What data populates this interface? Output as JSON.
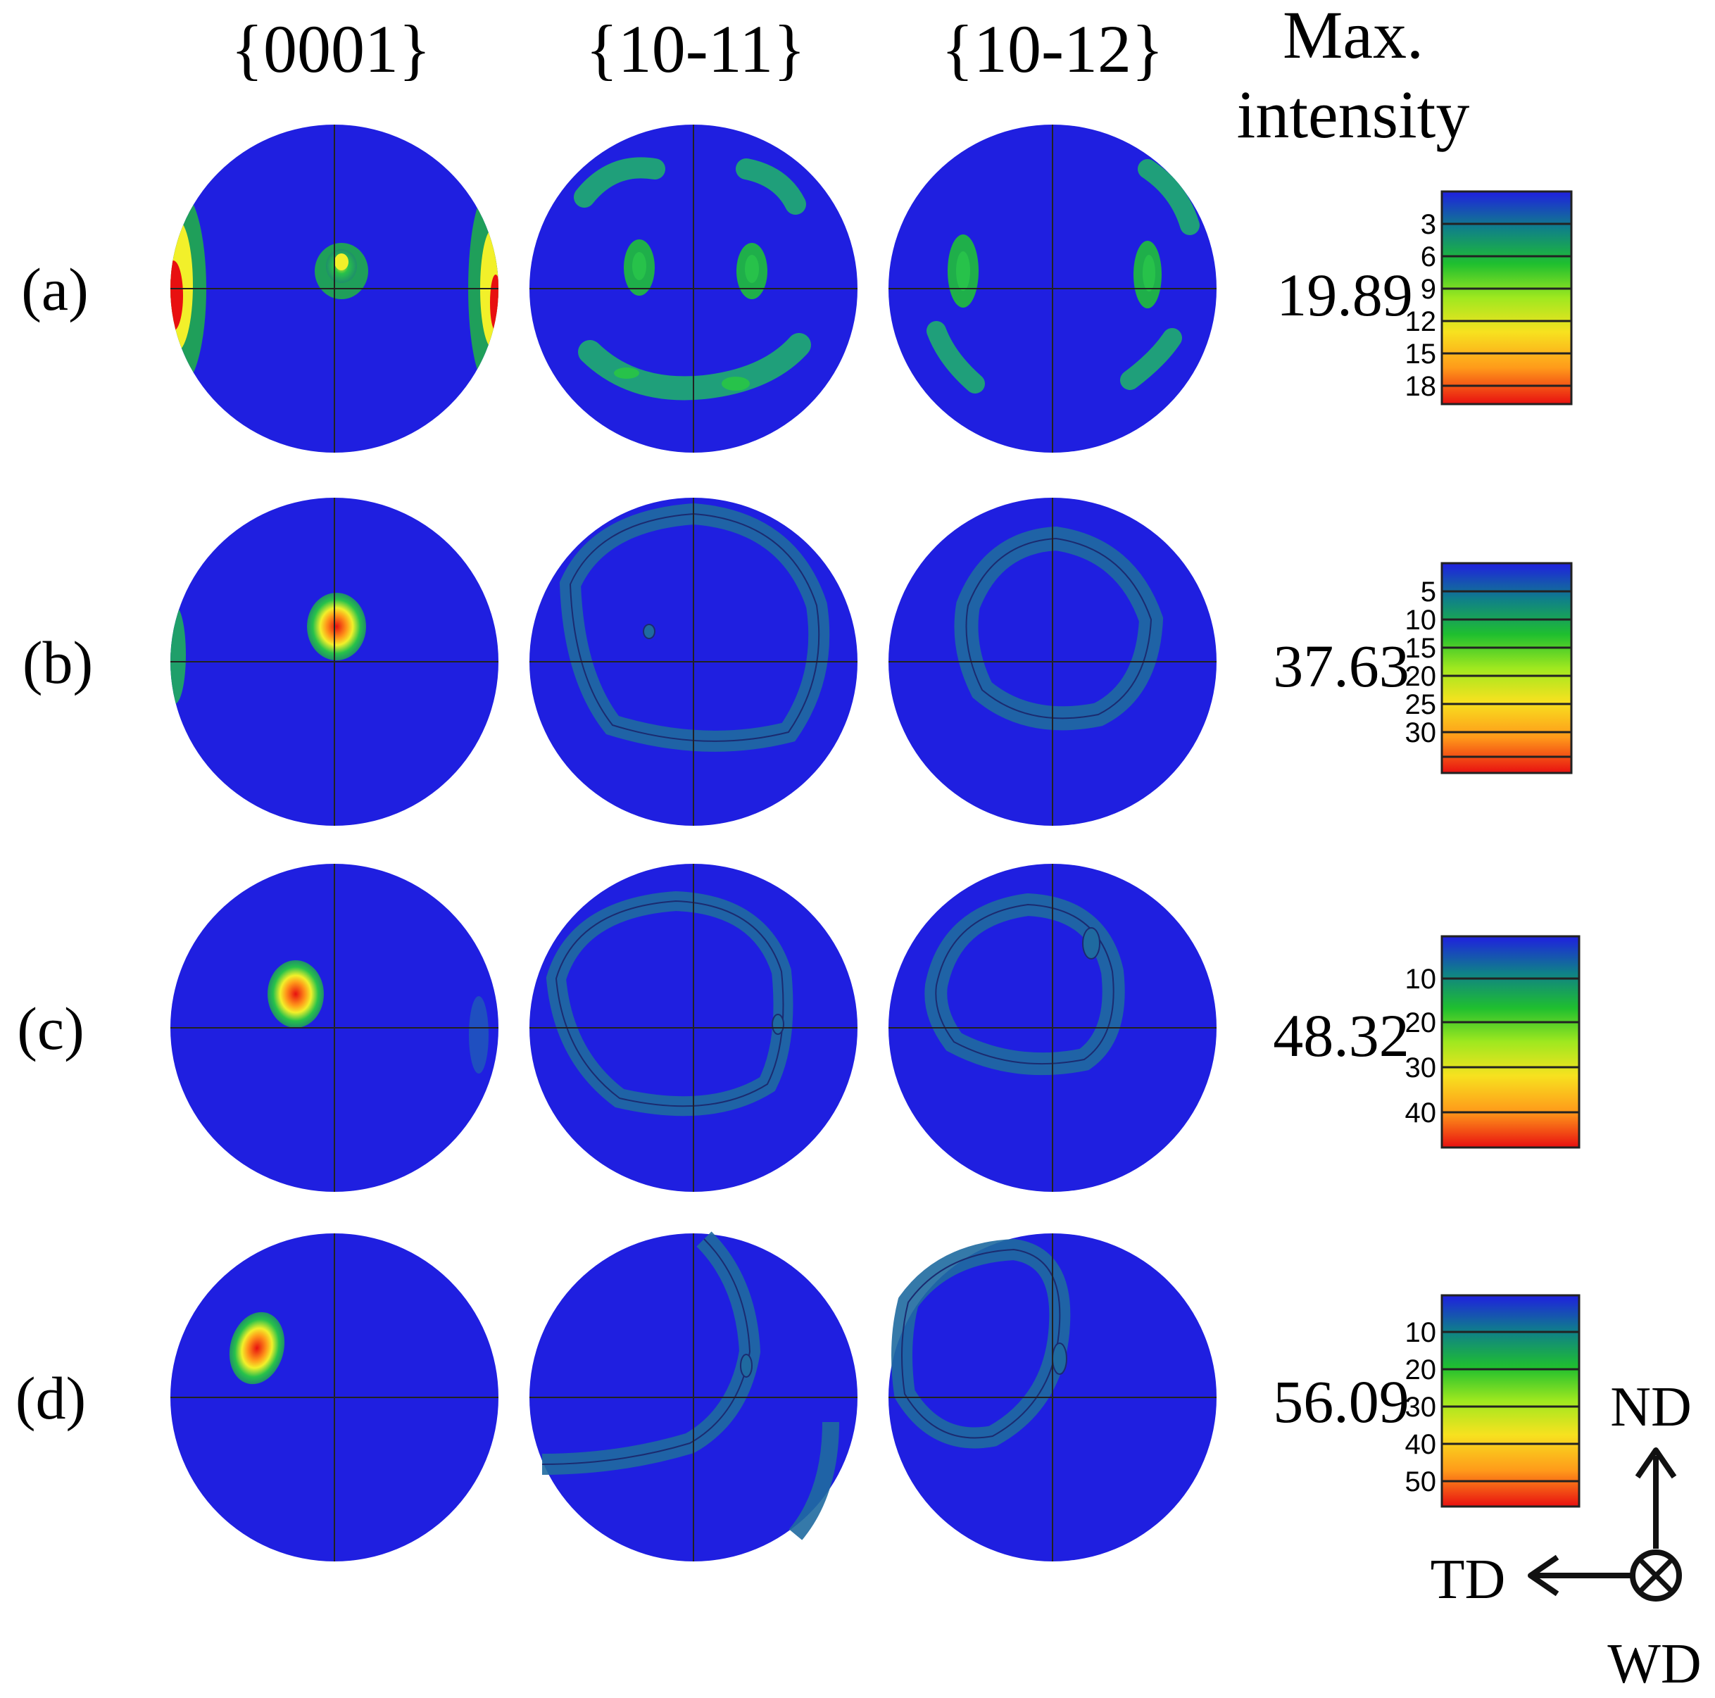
{
  "columns": [
    "{0001}",
    "{10-11}",
    "{10-12}"
  ],
  "max_intensity_header": [
    "Max.",
    "intensity"
  ],
  "rows": [
    {
      "label": "(a)",
      "max_intensity": "19.89",
      "scale_ticks": [
        "3",
        "6",
        "9",
        "12",
        "15",
        "18"
      ]
    },
    {
      "label": "(b)",
      "max_intensity": "37.63",
      "scale_ticks": [
        "5",
        "10",
        "15",
        "20",
        "25",
        "30"
      ]
    },
    {
      "label": "(c)",
      "max_intensity": "48.32",
      "scale_ticks": [
        "10",
        "20",
        "30",
        "40"
      ]
    },
    {
      "label": "(d)",
      "max_intensity": "56.09",
      "scale_ticks": [
        "10",
        "20",
        "30",
        "40",
        "50"
      ]
    }
  ],
  "axes": {
    "vertical": "ND",
    "horizontal": "TD",
    "normal": "WD"
  },
  "colors": {
    "background_blue": "#1f1fe0",
    "contour_green": "#27c24a",
    "peak_yellow": "#f2f02a",
    "peak_orange": "#ff9a1a",
    "peak_red": "#e81010",
    "scale_stops": [
      "#1f1fe0",
      "#0f7f8a",
      "#1fbf2f",
      "#9fe81f",
      "#f7e21f",
      "#ff9a1a",
      "#e81010"
    ]
  }
}
